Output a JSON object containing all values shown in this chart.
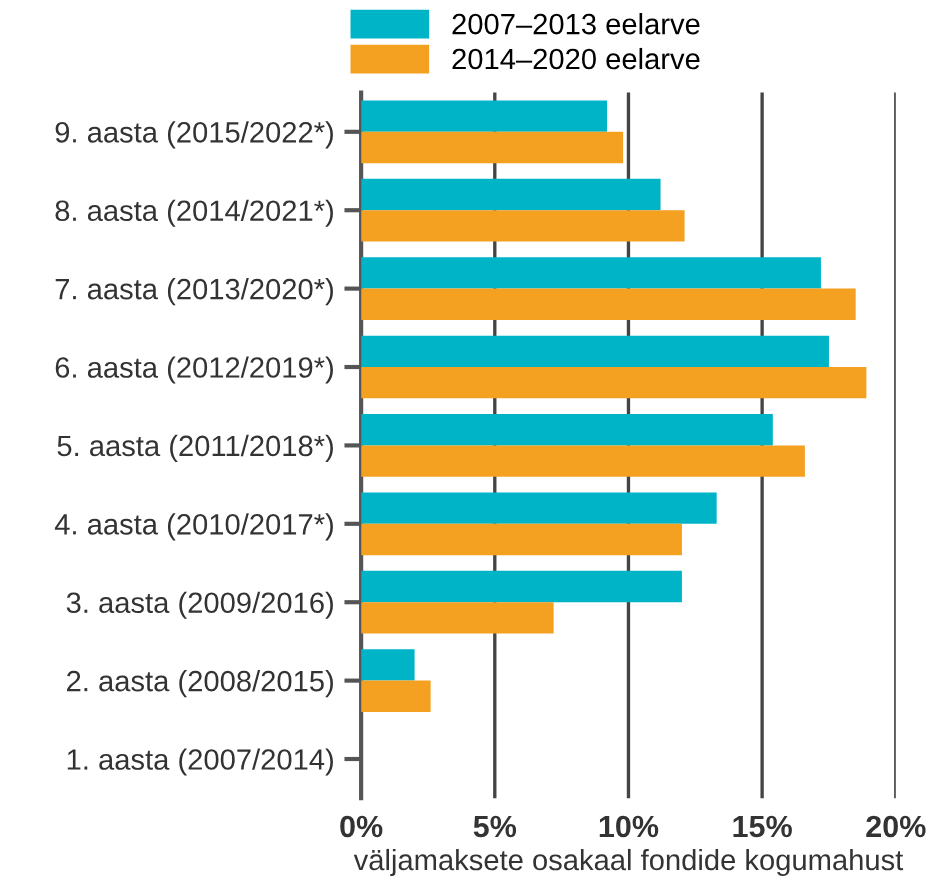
{
  "chart_data": {
    "type": "bar",
    "orientation": "horizontal",
    "xlabel": "väljamaksete osakaal fondide kogumahust",
    "categories": [
      "9. aasta (2015/2022*)",
      "8. aasta (2014/2021*)",
      "7. aasta (2013/2020*)",
      "6. aasta (2012/2019*)",
      "5. aasta (2011/2018*)",
      "4. aasta (2010/2017*)",
      "3. aasta (2009/2016)",
      "2. aasta (2008/2015)",
      "1. aasta (2007/2014)"
    ],
    "series": [
      {
        "name": "2007–2013 eelarve",
        "color": "#00b4c8",
        "values": [
          9.2,
          11.2,
          17.2,
          17.5,
          15.4,
          13.3,
          12.0,
          2.0,
          0
        ]
      },
      {
        "name": "2014–2020 eelarve",
        "color": "#f4a020",
        "values": [
          9.8,
          12.1,
          18.5,
          18.9,
          16.6,
          12.0,
          7.2,
          2.6,
          0
        ]
      }
    ],
    "xlim": [
      0,
      20
    ],
    "xticks": [
      {
        "value": 0,
        "label": "0%"
      },
      {
        "value": 5,
        "label": "5%"
      },
      {
        "value": 10,
        "label": "10%"
      },
      {
        "value": 15,
        "label": "15%"
      },
      {
        "value": 20,
        "label": "20%"
      }
    ],
    "grid": "x",
    "legend": "top"
  }
}
